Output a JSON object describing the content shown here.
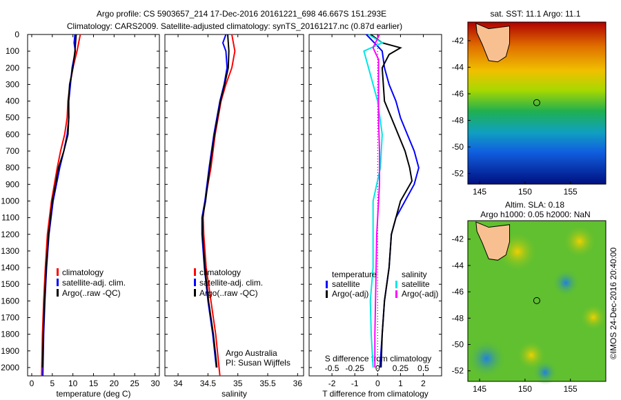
{
  "title_line1": "Argo profile: CS 5903657_214 17-Dec-2016 20161221_698 46.667S 151.293E",
  "title_line2": "Climatology: CARS2009. Satellite-adjusted climatology: synTS_20161217.nc (0.87d earlier)",
  "side_label": "©IMOS 24-Dec-2016 20:40:00",
  "colors": {
    "climatology": "#ff0000",
    "satellite": "#0000ff",
    "argo": "#000000",
    "sal_satellite": "#00e5e5",
    "sal_argo": "#ff00ff"
  },
  "chart_data": [
    {
      "type": "line",
      "name": "temperature",
      "xlabel": "temperature (deg C)",
      "xlim": [
        -1,
        31
      ],
      "xticks": [
        "0",
        "5",
        "10",
        "15",
        "20",
        "25",
        "30"
      ],
      "xtick_values": [
        0,
        5,
        10,
        15,
        20,
        25,
        30
      ],
      "ylim": [
        0,
        2050
      ],
      "yticks": [
        "0",
        "100",
        "200",
        "300",
        "400",
        "500",
        "600",
        "700",
        "800",
        "900",
        "1000",
        "1100",
        "1200",
        "1300",
        "1400",
        "1500",
        "1600",
        "1700",
        "1800",
        "1900",
        "2000"
      ],
      "legend": [
        "climatology",
        "satellite-adj. clim.",
        "Argo(..raw -QC)"
      ],
      "series": [
        {
          "name": "climatology",
          "color": "climatology",
          "depth": [
            0,
            100,
            200,
            300,
            400,
            500,
            600,
            700,
            800,
            900,
            1000,
            1200,
            1400,
            1600,
            1800,
            2050
          ],
          "values": [
            11.8,
            11,
            10,
            9.3,
            8.8,
            8.6,
            8,
            7,
            6.2,
            5.5,
            4.8,
            3.8,
            3.3,
            2.9,
            2.6,
            2.4
          ]
        },
        {
          "name": "satellite-adj. clim.",
          "color": "satellite",
          "depth": [
            0,
            50,
            100,
            200,
            300,
            400,
            500,
            600,
            700,
            800,
            900,
            1000,
            1200,
            1400,
            1600,
            1800,
            2050
          ],
          "values": [
            10.5,
            10.3,
            10.6,
            9.8,
            9.4,
            9,
            9,
            8.6,
            7.8,
            6.8,
            6,
            5.2,
            4.2,
            3.6,
            3.2,
            2.9,
            2.7
          ]
        },
        {
          "name": "Argo(..raw -QC)",
          "color": "argo",
          "depth": [
            0,
            100,
            200,
            300,
            400,
            500,
            600,
            700,
            800,
            900,
            1000,
            1200,
            1400,
            1600,
            1800,
            2000
          ],
          "values": [
            10.8,
            10.5,
            10,
            9.2,
            8.9,
            9,
            8.8,
            7.8,
            6.5,
            5.8,
            5,
            4.1,
            3.5,
            3.1,
            2.8,
            2.6
          ]
        }
      ]
    },
    {
      "type": "line",
      "name": "salinity",
      "xlabel": "salinity",
      "xlim": [
        33.78,
        36.1
      ],
      "xticks": [
        "34",
        "34.5",
        "35",
        "35.5",
        "36"
      ],
      "xtick_values": [
        34,
        34.5,
        35,
        35.5,
        36
      ],
      "ylim": [
        0,
        2050
      ],
      "legend": [
        "climatology",
        "satellite-adj. clim.",
        "Argo(..raw -QC)"
      ],
      "annotation": [
        "Argo Australia",
        "PI: Susan Wijffels"
      ],
      "series": [
        {
          "name": "climatology",
          "color": "climatology",
          "depth": [
            0,
            100,
            200,
            300,
            400,
            600,
            800,
            1000,
            1100,
            1200,
            1400,
            1600,
            1800,
            2050
          ],
          "values": [
            34.9,
            34.95,
            34.9,
            34.8,
            34.72,
            34.62,
            34.55,
            34.45,
            34.42,
            34.43,
            34.47,
            34.55,
            34.63,
            34.7
          ]
        },
        {
          "name": "satellite-adj. clim.",
          "color": "satellite",
          "depth": [
            0,
            50,
            100,
            200,
            300,
            400,
            600,
            800,
            1000,
            1100,
            1200,
            1400,
            1600,
            1800,
            2000
          ],
          "values": [
            34.8,
            34.75,
            34.8,
            34.82,
            34.77,
            34.7,
            34.6,
            34.52,
            34.45,
            34.4,
            34.4,
            34.44,
            34.5,
            34.58,
            34.64
          ]
        },
        {
          "name": "Argo(..raw -QC)",
          "color": "argo",
          "depth": [
            0,
            100,
            200,
            300,
            400,
            600,
            800,
            1000,
            1100,
            1200,
            1400,
            1600,
            1800,
            2000
          ],
          "values": [
            34.83,
            34.85,
            34.84,
            34.78,
            34.71,
            34.61,
            34.53,
            34.46,
            34.41,
            34.41,
            34.45,
            34.51,
            34.59,
            34.65
          ]
        }
      ]
    },
    {
      "type": "line",
      "name": "difference",
      "xlabel": "T difference from climatology",
      "xlim": [
        -3,
        2.8
      ],
      "xticks": [
        "-2",
        "-1",
        "0",
        "1",
        "2"
      ],
      "xtick_values": [
        -2,
        -1,
        0,
        1,
        2
      ],
      "x2label": "S difference from climatology",
      "x2ticks": [
        "-0.5",
        "-0.25",
        "0",
        "0.25",
        "0.5"
      ],
      "x2tick_values": [
        -0.5,
        -0.25,
        0,
        0.25,
        0.5
      ],
      "ylim": [
        0,
        2050
      ],
      "legend_temperature": {
        "title": "temperature",
        "items": [
          "satellite",
          "Argo(-adj)"
        ]
      },
      "legend_salinity": {
        "title": "salinity",
        "items": [
          "satellite",
          "Argo(-adj)"
        ]
      },
      "series": [
        {
          "name": "T satellite",
          "color": "satellite",
          "axis": "T",
          "depth": [
            0,
            70,
            100,
            200,
            300,
            400,
            500,
            600,
            700,
            800,
            900,
            1000,
            1100,
            1200,
            1400,
            1600,
            1800,
            2000
          ],
          "values": [
            -0.5,
            0,
            0.2,
            0.3,
            0.5,
            0.8,
            1.0,
            1.3,
            1.6,
            1.8,
            1.6,
            1.2,
            0.8,
            0.6,
            0.5,
            0.3,
            0.2,
            0.1
          ]
        },
        {
          "name": "T Argo(-adj)",
          "color": "argo",
          "axis": "T",
          "depth": [
            0,
            50,
            80,
            120,
            200,
            400,
            500,
            600,
            700,
            800,
            880,
            1000,
            1100,
            1200,
            1400,
            1600,
            1800,
            2000
          ],
          "values": [
            -0.3,
            0.2,
            1.0,
            0.5,
            0.2,
            0.3,
            0.6,
            0.9,
            1.2,
            1.4,
            1.5,
            1.0,
            0.8,
            0.6,
            0.5,
            0.3,
            0.2,
            0.15
          ]
        },
        {
          "name": "S satellite",
          "color": "sal_satellite",
          "axis": "S",
          "depth": [
            0,
            50,
            100,
            200,
            400,
            600,
            800,
            1000,
            1200,
            1400,
            1600,
            1800,
            2000
          ],
          "values": [
            -0.1,
            0.05,
            -0.15,
            -0.1,
            0,
            0.05,
            0.03,
            -0.05,
            -0.05,
            -0.05,
            -0.08,
            -0.07,
            -0.05
          ]
        },
        {
          "name": "S Argo(-adj)",
          "color": "sal_argo",
          "axis": "S",
          "depth": [
            0,
            80,
            150,
            300,
            500,
            700,
            900,
            1200,
            1500,
            1800,
            2000
          ],
          "values": [
            0.02,
            -0.05,
            0.01,
            0.01,
            0.01,
            0.02,
            0.02,
            -0.01,
            -0.02,
            -0.03,
            -0.03
          ]
        }
      ]
    }
  ],
  "map_sst": {
    "title": "sat. SST: 11.1  Argo: 11.1",
    "yticks": [
      "-42",
      "-44",
      "-46",
      "-48",
      "-50",
      "-52"
    ],
    "xticks": [
      "145",
      "150",
      "155"
    ]
  },
  "map_sla": {
    "title1": "Altim. SLA: 0.18",
    "title2": "Argo h1000: 0.05 h2000: NaN",
    "yticks": [
      "-42",
      "-44",
      "-46",
      "-48",
      "-50",
      "-52"
    ],
    "xticks": [
      "145",
      "150",
      "155"
    ]
  }
}
